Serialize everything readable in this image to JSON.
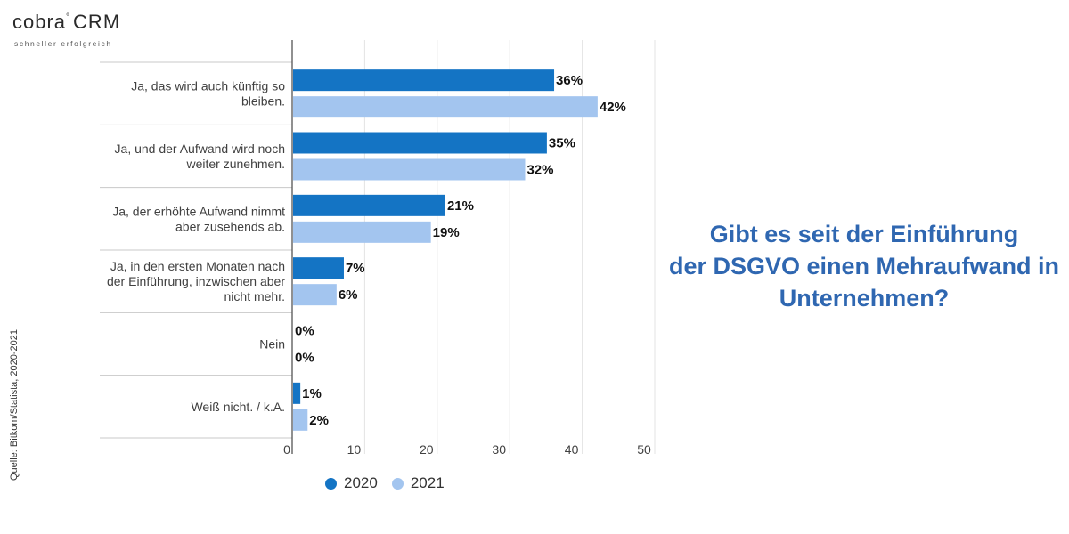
{
  "brand": {
    "name": "cobra",
    "suffix": "CRM",
    "tagline": "schneller erfolgreich",
    "sup": "°"
  },
  "source": "Quelle: Bitkom/Statista, 2020-2021",
  "question": {
    "lines": [
      "Gibt es seit der Einführung",
      "der DSGVO einen Mehraufwand in",
      "Unternehmen?"
    ]
  },
  "colors": {
    "2020": "#1474c4",
    "2021": "#a3c5ef",
    "question": "#2f67b1"
  },
  "chart_data": {
    "type": "bar",
    "orientation": "horizontal",
    "title": "Gibt es seit der Einführung der DSGVO einen Mehraufwand in Unternehmen?",
    "categories": [
      [
        "Ja, das wird auch künftig so",
        "bleiben."
      ],
      [
        "Ja, und der Aufwand wird noch",
        "weiter zunehmen."
      ],
      [
        "Ja, der erhöhte Aufwand nimmt",
        "aber zusehends ab."
      ],
      [
        "Ja, in den ersten Monaten nach",
        "der Einführung, inzwischen aber",
        "nicht mehr."
      ],
      [
        "Nein"
      ],
      [
        "Weiß nicht. / k.A."
      ]
    ],
    "series": [
      {
        "name": "2020",
        "values": [
          36,
          35,
          21,
          7,
          0,
          1
        ],
        "labels": [
          "36%",
          "35%",
          "21%",
          "7%",
          "0%",
          "1%"
        ]
      },
      {
        "name": "2021",
        "values": [
          42,
          32,
          19,
          6,
          0,
          2
        ],
        "labels": [
          "42%",
          "32%",
          "19%",
          "6%",
          "0%",
          "2%"
        ]
      }
    ],
    "xlim": [
      0,
      50
    ],
    "xticks": [
      0,
      10,
      20,
      30,
      40,
      50
    ],
    "grid": true,
    "legend_position": "bottom"
  }
}
